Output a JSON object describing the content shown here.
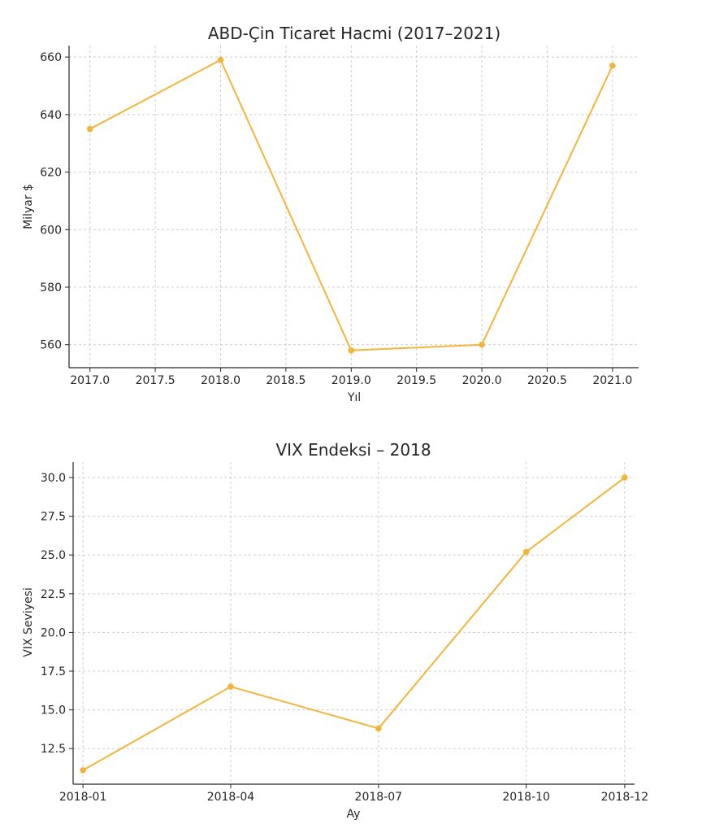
{
  "chart_data": [
    {
      "type": "line",
      "title": "ABD-Çin Ticaret Hacmi (2017–2021)",
      "xlabel": "Yıl",
      "ylabel": "Milyar $",
      "x": [
        2017,
        2018,
        2019,
        2020,
        2021
      ],
      "x_tick_labels": [
        "2017.0",
        "2017.5",
        "2018.0",
        "2018.5",
        "2019.0",
        "2019.5",
        "2020.0",
        "2020.5",
        "2021.0"
      ],
      "y_tick_labels": [
        "560",
        "580",
        "600",
        "620",
        "640",
        "660"
      ],
      "xlim": [
        2016.84,
        2021.2
      ],
      "ylim": [
        552,
        664
      ],
      "series": [
        {
          "values": [
            635,
            659,
            558,
            560,
            657
          ]
        }
      ],
      "color": "#f2b53a",
      "grid": true,
      "marker": "circle"
    },
    {
      "type": "line",
      "title": "VIX Endeksi – 2018",
      "xlabel": "Ay",
      "ylabel": "VIX Seviyesi",
      "x": [
        "2018-01",
        "2018-04",
        "2018-07",
        "2018-10",
        "2018-12"
      ],
      "x_tick_labels": [
        "2018-01",
        "2018-04",
        "2018-07",
        "2018-10",
        "2018-12"
      ],
      "y_tick_labels": [
        "12.5",
        "15.0",
        "17.5",
        "20.0",
        "22.5",
        "25.0",
        "27.5",
        "30.0"
      ],
      "ylim": [
        10.2,
        31.0
      ],
      "series": [
        {
          "values": [
            11.1,
            16.5,
            13.8,
            25.2,
            30.0
          ]
        }
      ],
      "color": "#f2b53a",
      "grid": true,
      "marker": "circle"
    }
  ]
}
